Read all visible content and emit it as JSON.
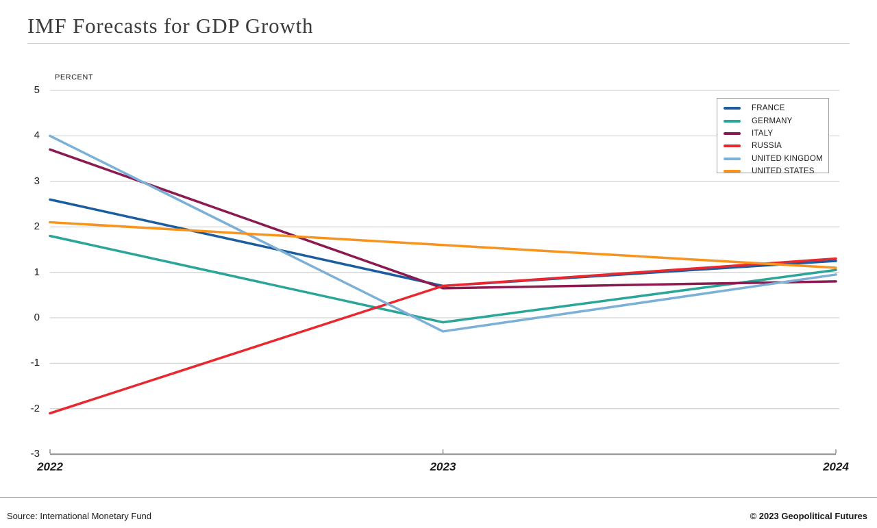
{
  "header": {
    "title": "IMF Forecasts for GDP Growth"
  },
  "footer": {
    "source": "Source: International Monetary Fund",
    "copyright": "© 2023 Geopolitical Futures"
  },
  "chart_data": {
    "type": "line",
    "title": "IMF Forecasts for GDP Growth",
    "unit_label": "PERCENT",
    "categories": [
      "2022",
      "2023",
      "2024"
    ],
    "series": [
      {
        "name": "FRANCE",
        "color": "#1c5d9f",
        "values": [
          2.6,
          0.7,
          1.25
        ]
      },
      {
        "name": "GERMANY",
        "color": "#2aa598",
        "values": [
          1.8,
          -0.1,
          1.05
        ]
      },
      {
        "name": "ITALY",
        "color": "#8a1a50",
        "values": [
          3.7,
          0.65,
          0.8
        ]
      },
      {
        "name": "RUSSIA",
        "color": "#e8282e",
        "values": [
          -2.1,
          0.7,
          1.3
        ]
      },
      {
        "name": "UNITED KINGDOM",
        "color": "#7cb0d7",
        "values": [
          4.0,
          -0.3,
          0.95
        ]
      },
      {
        "name": "UNITED STATES",
        "color": "#f7941e",
        "values": [
          2.1,
          1.6,
          1.1
        ]
      }
    ],
    "yticks": [
      5,
      4,
      3,
      2,
      1,
      0,
      -1,
      -2,
      -3
    ],
    "ylim": [
      -3,
      5
    ],
    "grid": true,
    "legend_position": "top-right",
    "grid_color": "#c7c7c7",
    "axis_color": "#8f8f8f"
  }
}
